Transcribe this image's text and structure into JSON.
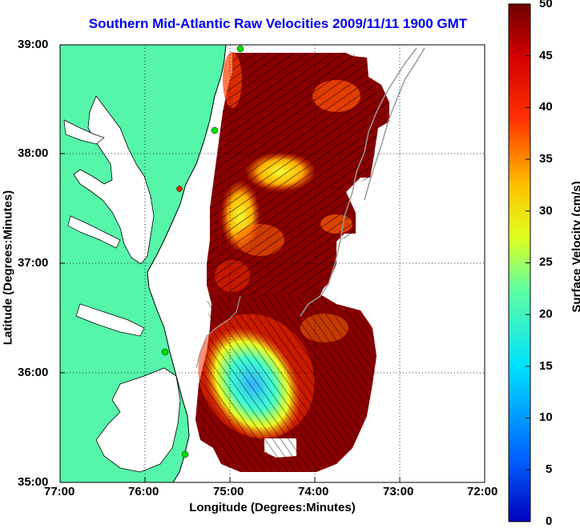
{
  "title": "Southern Mid-Atlantic Raw Velocities 2009/11/11 1900 GMT",
  "xlabel": "Longitude (Degrees:Minutes)",
  "ylabel": "Latitude (Degrees:Minutes)",
  "colorbar": {
    "label": "Surface Velocity (cm/s)",
    "ticks": [
      "0",
      "5",
      "10",
      "15",
      "20",
      "25",
      "30",
      "35",
      "40",
      "45",
      "50"
    ],
    "range": [
      0,
      50
    ],
    "colormap": "jet"
  },
  "x_ticks": [
    "77:00",
    "76:00",
    "75:00",
    "74:00",
    "73:00",
    "72:00"
  ],
  "y_ticks": [
    "39:00",
    "38:00",
    "37:00",
    "36:00",
    "35:00"
  ],
  "colors": {
    "land": "#55f5aa",
    "ocean": "#ffffff",
    "title": "#0000ee",
    "station_green": "#00e000",
    "station_red": "#ee2200"
  },
  "legend_icons": [
    "station-marker-icon"
  ]
}
